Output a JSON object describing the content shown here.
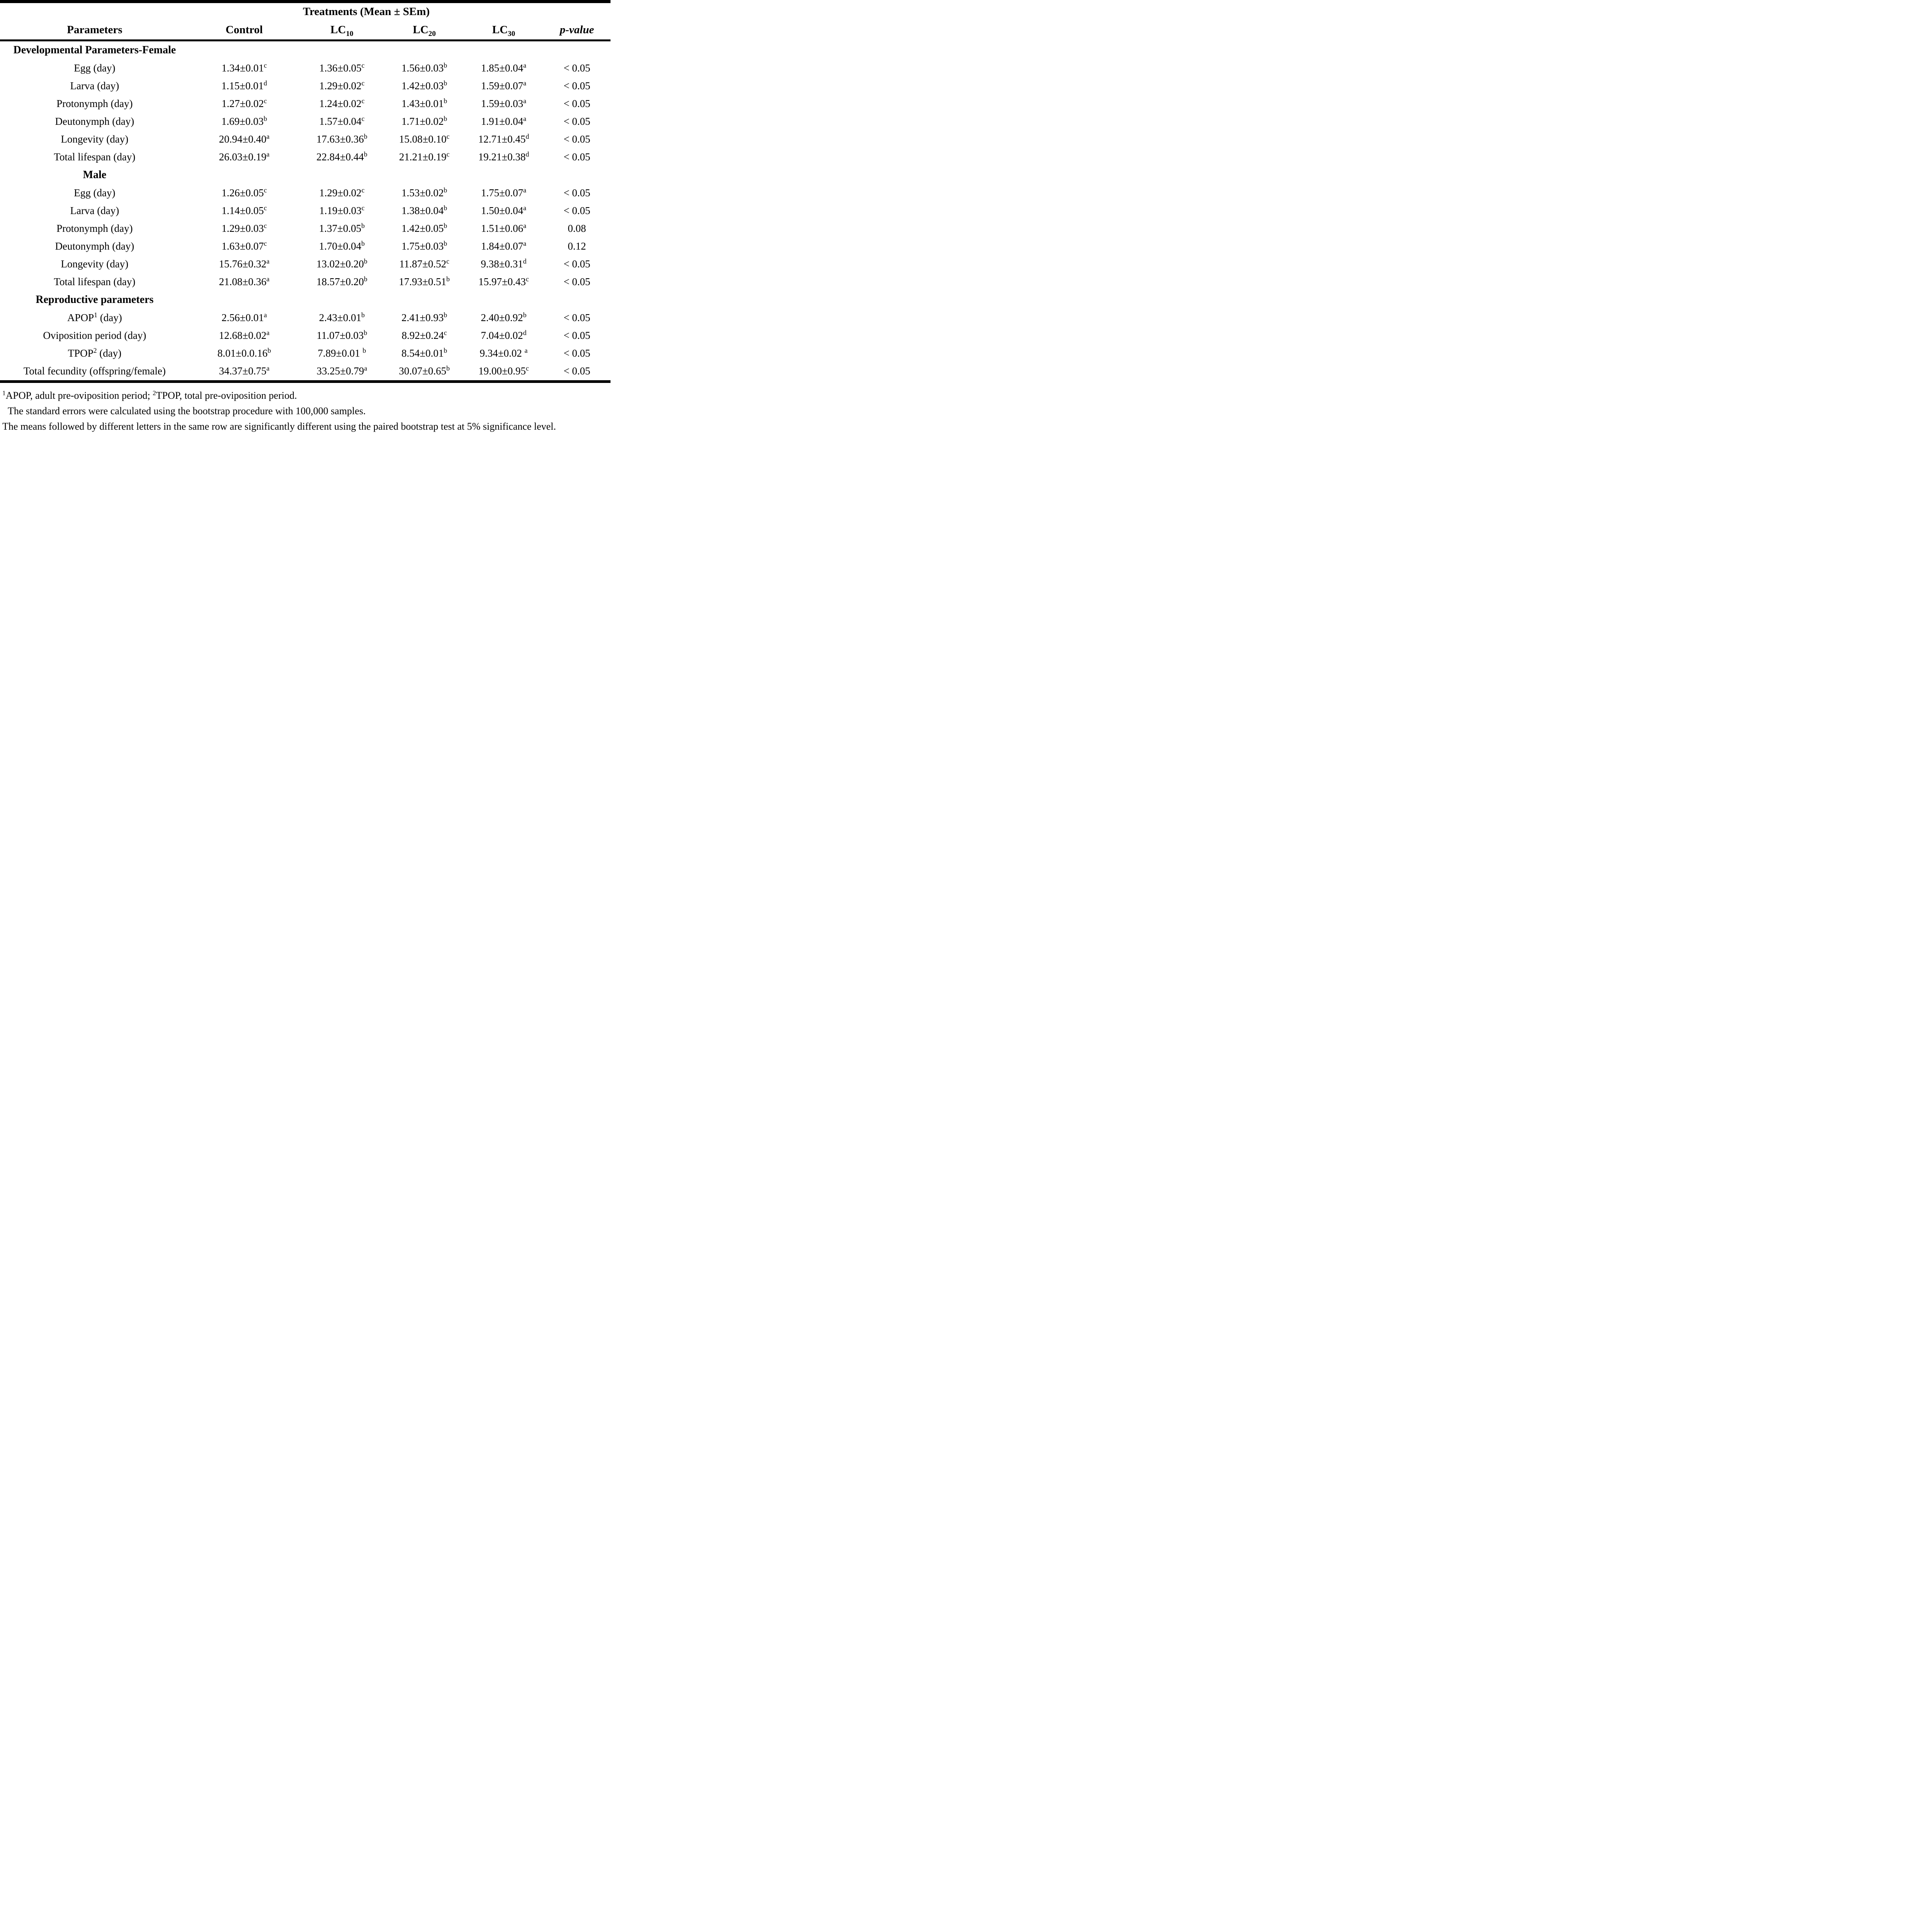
{
  "header": {
    "treatments": "Treatments (Mean ± SEm)",
    "cols": [
      {
        "label": "Parameters"
      },
      {
        "label": "Control"
      },
      {
        "label": "LC",
        "sub": "10"
      },
      {
        "label": "LC",
        "sub": "20"
      },
      {
        "label": "LC",
        "sub": "30"
      },
      {
        "label": "p-value"
      }
    ]
  },
  "sections": [
    {
      "title": "Developmental Parameters-Female",
      "rows": [
        {
          "param": "Egg (day)",
          "cells": [
            [
              "1.34±0.01",
              "c"
            ],
            [
              "1.36±0.05",
              "c"
            ],
            [
              "1.56±0.03",
              "b"
            ],
            [
              "1.85±0.04",
              "a"
            ]
          ],
          "p": "< 0.05"
        },
        {
          "param": "Larva (day)",
          "cells": [
            [
              "1.15±0.01",
              "d"
            ],
            [
              "1.29±0.02",
              "c"
            ],
            [
              "1.42±0.03",
              "b"
            ],
            [
              "1.59±0.07",
              "a"
            ]
          ],
          "p": "< 0.05"
        },
        {
          "param": "Protonymph (day)",
          "cells": [
            [
              "1.27±0.02",
              "c"
            ],
            [
              "1.24±0.02",
              "c"
            ],
            [
              "1.43±0.01",
              "b"
            ],
            [
              "1.59±0.03",
              "a"
            ]
          ],
          "p": "< 0.05"
        },
        {
          "param": "Deutonymph (day)",
          "cells": [
            [
              "1.69±0.03",
              "b"
            ],
            [
              "1.57±0.04",
              "c"
            ],
            [
              "1.71±0.02",
              "b"
            ],
            [
              "1.91±0.04",
              "a"
            ]
          ],
          "p": "< 0.05"
        },
        {
          "param": "Longevity (day)",
          "cells": [
            [
              "20.94±0.40",
              "a"
            ],
            [
              "17.63±0.36",
              "b"
            ],
            [
              "15.08±0.10",
              "c"
            ],
            [
              "12.71±0.45",
              "d"
            ]
          ],
          "p": "< 0.05"
        },
        {
          "param": "Total lifespan (day)",
          "cells": [
            [
              "26.03±0.19",
              "a"
            ],
            [
              "22.84±0.44",
              "b"
            ],
            [
              "21.21±0.19",
              "c"
            ],
            [
              "19.21±0.38",
              "d"
            ]
          ],
          "p": "< 0.05"
        }
      ]
    },
    {
      "title": "Male",
      "rows": [
        {
          "param": "Egg (day)",
          "cells": [
            [
              "1.26±0.05",
              "c"
            ],
            [
              "1.29±0.02",
              "c"
            ],
            [
              "1.53±0.02",
              "b"
            ],
            [
              "1.75±0.07",
              "a"
            ]
          ],
          "p": "< 0.05"
        },
        {
          "param": "Larva (day)",
          "cells": [
            [
              "1.14±0.05",
              "c"
            ],
            [
              "1.19±0.03",
              "c"
            ],
            [
              "1.38±0.04",
              "b"
            ],
            [
              "1.50±0.04",
              "a"
            ]
          ],
          "p": "< 0.05"
        },
        {
          "param": "Protonymph (day)",
          "cells": [
            [
              "1.29±0.03",
              "c"
            ],
            [
              "1.37±0.05",
              "b"
            ],
            [
              "1.42±0.05",
              "b"
            ],
            [
              "1.51±0.06",
              "a"
            ]
          ],
          "p": "0.08"
        },
        {
          "param": "Deutonymph (day)",
          "cells": [
            [
              "1.63±0.07",
              "c"
            ],
            [
              "1.70±0.04",
              "b"
            ],
            [
              "1.75±0.03",
              "b"
            ],
            [
              "1.84±0.07",
              "a"
            ]
          ],
          "p": "0.12"
        },
        {
          "param": "Longevity (day)",
          "cells": [
            [
              "15.76±0.32",
              "a"
            ],
            [
              "13.02±0.20",
              "b"
            ],
            [
              "11.87±0.52",
              "c"
            ],
            [
              "9.38±0.31",
              "d"
            ]
          ],
          "p": "< 0.05"
        },
        {
          "param": "Total lifespan (day)",
          "cells": [
            [
              "21.08±0.36",
              "a"
            ],
            [
              "18.57±0.20",
              "b"
            ],
            [
              "17.93±0.51",
              "b"
            ],
            [
              "15.97±0.43",
              "c"
            ]
          ],
          "p": "< 0.05"
        }
      ]
    },
    {
      "title": "Reproductive parameters",
      "rows": [
        {
          "param": "APOP",
          "param_sup": "1",
          "param_tail": " (day)",
          "cells": [
            [
              "2.56±0.01",
              "a"
            ],
            [
              "2.43±0.01",
              "b"
            ],
            [
              "2.41±0.93",
              "b"
            ],
            [
              "2.40±0.92",
              "b"
            ]
          ],
          "p": "< 0.05"
        },
        {
          "param": "Oviposition period (day)",
          "cells": [
            [
              "12.68±0.02",
              "a"
            ],
            [
              "11.07±0.03",
              "b"
            ],
            [
              "8.92±0.24",
              "c"
            ],
            [
              "7.04±0.02",
              "d"
            ]
          ],
          "p": "< 0.05"
        },
        {
          "param": "TPOP",
          "param_sup": "2",
          "param_tail": " (day)",
          "cells": [
            [
              "8.01±0.0.16",
              "b"
            ],
            [
              "7.89±0.01 ",
              "b"
            ],
            [
              "8.54±0.01",
              "b"
            ],
            [
              "9.34±0.02 ",
              "a"
            ]
          ],
          "p": "< 0.05"
        },
        {
          "param": "Total fecundity (offspring/female)",
          "cells": [
            [
              "34.37±0.75",
              "a"
            ],
            [
              "33.25±0.79",
              "a"
            ],
            [
              "30.07±0.65",
              "b"
            ],
            [
              "19.00±0.95",
              "c"
            ]
          ],
          "p": "< 0.05"
        }
      ]
    }
  ],
  "footnotes": [
    [
      {
        "sup": "1"
      },
      {
        "text": "APOP, adult pre-oviposition period; "
      },
      {
        "sup": "2"
      },
      {
        "text": "TPOP, total pre-oviposition period."
      }
    ],
    [
      {
        "text": "The standard errors were calculated using the bootstrap procedure with 100,000 samples."
      }
    ],
    [
      {
        "text": "The means followed by different letters in the same row are significantly different using the paired bootstrap test at 5% significance level."
      }
    ]
  ]
}
